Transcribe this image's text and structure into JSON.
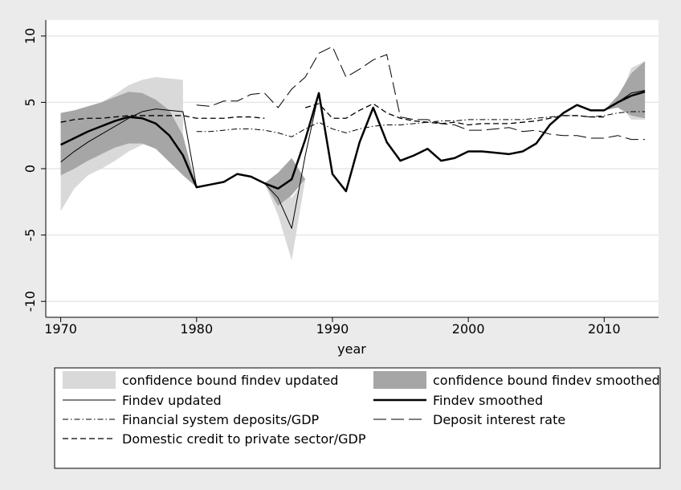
{
  "chart_data": {
    "type": "line",
    "x_label": "year",
    "x": [
      1970,
      1971,
      1972,
      1973,
      1974,
      1975,
      1976,
      1977,
      1978,
      1979,
      1980,
      1981,
      1982,
      1983,
      1984,
      1985,
      1986,
      1987,
      1988,
      1989,
      1990,
      1991,
      1992,
      1993,
      1994,
      1995,
      1996,
      1997,
      1998,
      1999,
      2000,
      2001,
      2002,
      2003,
      2004,
      2005,
      2006,
      2007,
      2008,
      2009,
      2010,
      2011,
      2012,
      2013
    ],
    "xlim": [
      1968.9,
      2014
    ],
    "xticks": [
      1970,
      1980,
      1990,
      2000,
      2010
    ],
    "ylim": [
      -11.2,
      11.2
    ],
    "yticks": [
      -10,
      -5,
      0,
      5,
      10
    ],
    "grid": true,
    "series": [
      {
        "name": "confidence bound findev updated",
        "style": "band",
        "color": "#d9d9d9",
        "lower": [
          -3.2,
          -1.5,
          -0.5,
          0,
          0.6,
          1.3,
          1.8,
          2.0,
          2.2,
          2.5,
          null,
          null,
          null,
          null,
          null,
          -1.1,
          -3.5,
          -6.9,
          -0.8,
          null,
          null,
          null,
          null,
          null,
          null,
          null,
          null,
          null,
          null,
          null,
          null,
          null,
          null,
          null,
          null,
          null,
          null,
          null,
          null,
          null,
          null,
          5.0,
          3.7,
          3.7
        ],
        "upper": [
          4.2,
          4.3,
          4.6,
          5.0,
          5.6,
          6.3,
          6.7,
          6.9,
          6.8,
          6.7,
          null,
          null,
          null,
          null,
          null,
          -1.1,
          -1.0,
          -2.2,
          -0.8,
          null,
          null,
          null,
          null,
          null,
          null,
          null,
          null,
          null,
          null,
          null,
          null,
          null,
          null,
          null,
          null,
          null,
          null,
          null,
          null,
          null,
          null,
          5.0,
          7.6,
          8.1
        ]
      },
      {
        "name": "confidence bound findev smoothed",
        "style": "band",
        "color": "#a6a6a6",
        "lower": [
          -0.5,
          0,
          0.6,
          1.1,
          1.6,
          1.9,
          1.9,
          1.5,
          0.5,
          -0.5,
          -1.4,
          null,
          null,
          null,
          null,
          -1.1,
          -2.8,
          -2.0,
          -0.8,
          null,
          null,
          null,
          null,
          null,
          null,
          null,
          null,
          null,
          null,
          null,
          null,
          null,
          null,
          null,
          null,
          null,
          null,
          null,
          null,
          null,
          4.4,
          4.6,
          4.0,
          3.8
        ],
        "upper": [
          4.2,
          4.4,
          4.7,
          5.0,
          5.4,
          5.8,
          5.7,
          5.2,
          4.4,
          2.5,
          -1.4,
          null,
          null,
          null,
          null,
          -1.1,
          -0.3,
          0.8,
          -0.8,
          null,
          null,
          null,
          null,
          null,
          null,
          null,
          null,
          null,
          null,
          null,
          null,
          null,
          null,
          null,
          null,
          null,
          null,
          null,
          null,
          null,
          4.4,
          5.5,
          7.2,
          8.1
        ]
      },
      {
        "name": "Findev updated",
        "style": "solid",
        "width": 1,
        "color": "#000000",
        "values": [
          0.5,
          1.3,
          2.0,
          2.6,
          3.2,
          3.8,
          4.3,
          4.5,
          4.4,
          4.3,
          -1.4,
          -1.2,
          -1.0,
          -0.4,
          -0.6,
          -1.1,
          -2.2,
          -4.5,
          1.0,
          5.7,
          -0.4,
          -1.7,
          2.0,
          4.6,
          2.0,
          0.6,
          1.0,
          1.5,
          0.6,
          0.8,
          1.3,
          1.3,
          1.2,
          1.1,
          1.3,
          1.9,
          3.3,
          4.2,
          4.8,
          4.4,
          4.4,
          5.0,
          5.7,
          5.9
        ]
      },
      {
        "name": "Findev smoothed",
        "style": "solid",
        "width": 2.5,
        "color": "#000000",
        "values": [
          1.8,
          2.3,
          2.8,
          3.2,
          3.6,
          3.9,
          3.8,
          3.4,
          2.5,
          1.0,
          -1.4,
          -1.2,
          -1.0,
          -0.4,
          -0.6,
          -1.1,
          -1.5,
          -0.8,
          2.2,
          5.7,
          -0.4,
          -1.7,
          2.0,
          4.6,
          2.0,
          0.6,
          1.0,
          1.5,
          0.6,
          0.8,
          1.3,
          1.3,
          1.2,
          1.1,
          1.3,
          1.9,
          3.3,
          4.2,
          4.8,
          4.4,
          4.4,
          5.0,
          5.5,
          5.8
        ]
      },
      {
        "name": "Financial system deposits/GDP",
        "style": "dashdot",
        "width": 1,
        "color": "#000000",
        "values": [
          null,
          null,
          null,
          null,
          null,
          null,
          null,
          null,
          null,
          null,
          2.8,
          2.8,
          2.9,
          3.0,
          3.0,
          2.9,
          2.7,
          2.4,
          3.0,
          3.5,
          3.0,
          2.7,
          3.0,
          3.2,
          3.3,
          3.3,
          3.4,
          3.5,
          3.6,
          3.6,
          3.7,
          3.7,
          3.7,
          3.7,
          3.7,
          3.8,
          3.9,
          4.0,
          4.0,
          3.9,
          4.0,
          4.2,
          4.3,
          4.3
        ]
      },
      {
        "name": "Deposit interest rate",
        "style": "longdash",
        "width": 1,
        "color": "#000000",
        "values": [
          null,
          null,
          null,
          null,
          null,
          null,
          null,
          null,
          null,
          null,
          4.8,
          4.7,
          5.1,
          5.1,
          5.6,
          5.7,
          4.6,
          6.0,
          6.9,
          8.7,
          9.2,
          6.9,
          7.5,
          8.2,
          8.6,
          3.9,
          3.7,
          3.7,
          3.4,
          3.3,
          2.9,
          2.9,
          3.0,
          3.1,
          2.8,
          2.9,
          2.6,
          2.5,
          2.5,
          2.3,
          2.3,
          2.5,
          2.2,
          2.2
        ]
      },
      {
        "name": "Domestic credit to private sector/GDP",
        "style": "dash",
        "width": 1.3,
        "color": "#000000",
        "values": [
          3.5,
          3.7,
          3.8,
          3.8,
          3.9,
          4.0,
          4.0,
          4.0,
          4.0,
          4.0,
          3.8,
          3.8,
          3.8,
          3.9,
          3.9,
          3.8,
          null,
          null,
          4.6,
          4.9,
          3.8,
          3.8,
          4.4,
          4.9,
          4.2,
          3.8,
          3.6,
          3.5,
          3.4,
          3.5,
          3.3,
          3.4,
          3.4,
          3.4,
          3.5,
          3.6,
          3.8,
          4.0,
          4.0,
          3.9,
          3.9,
          null,
          null,
          null
        ]
      }
    ]
  }
}
